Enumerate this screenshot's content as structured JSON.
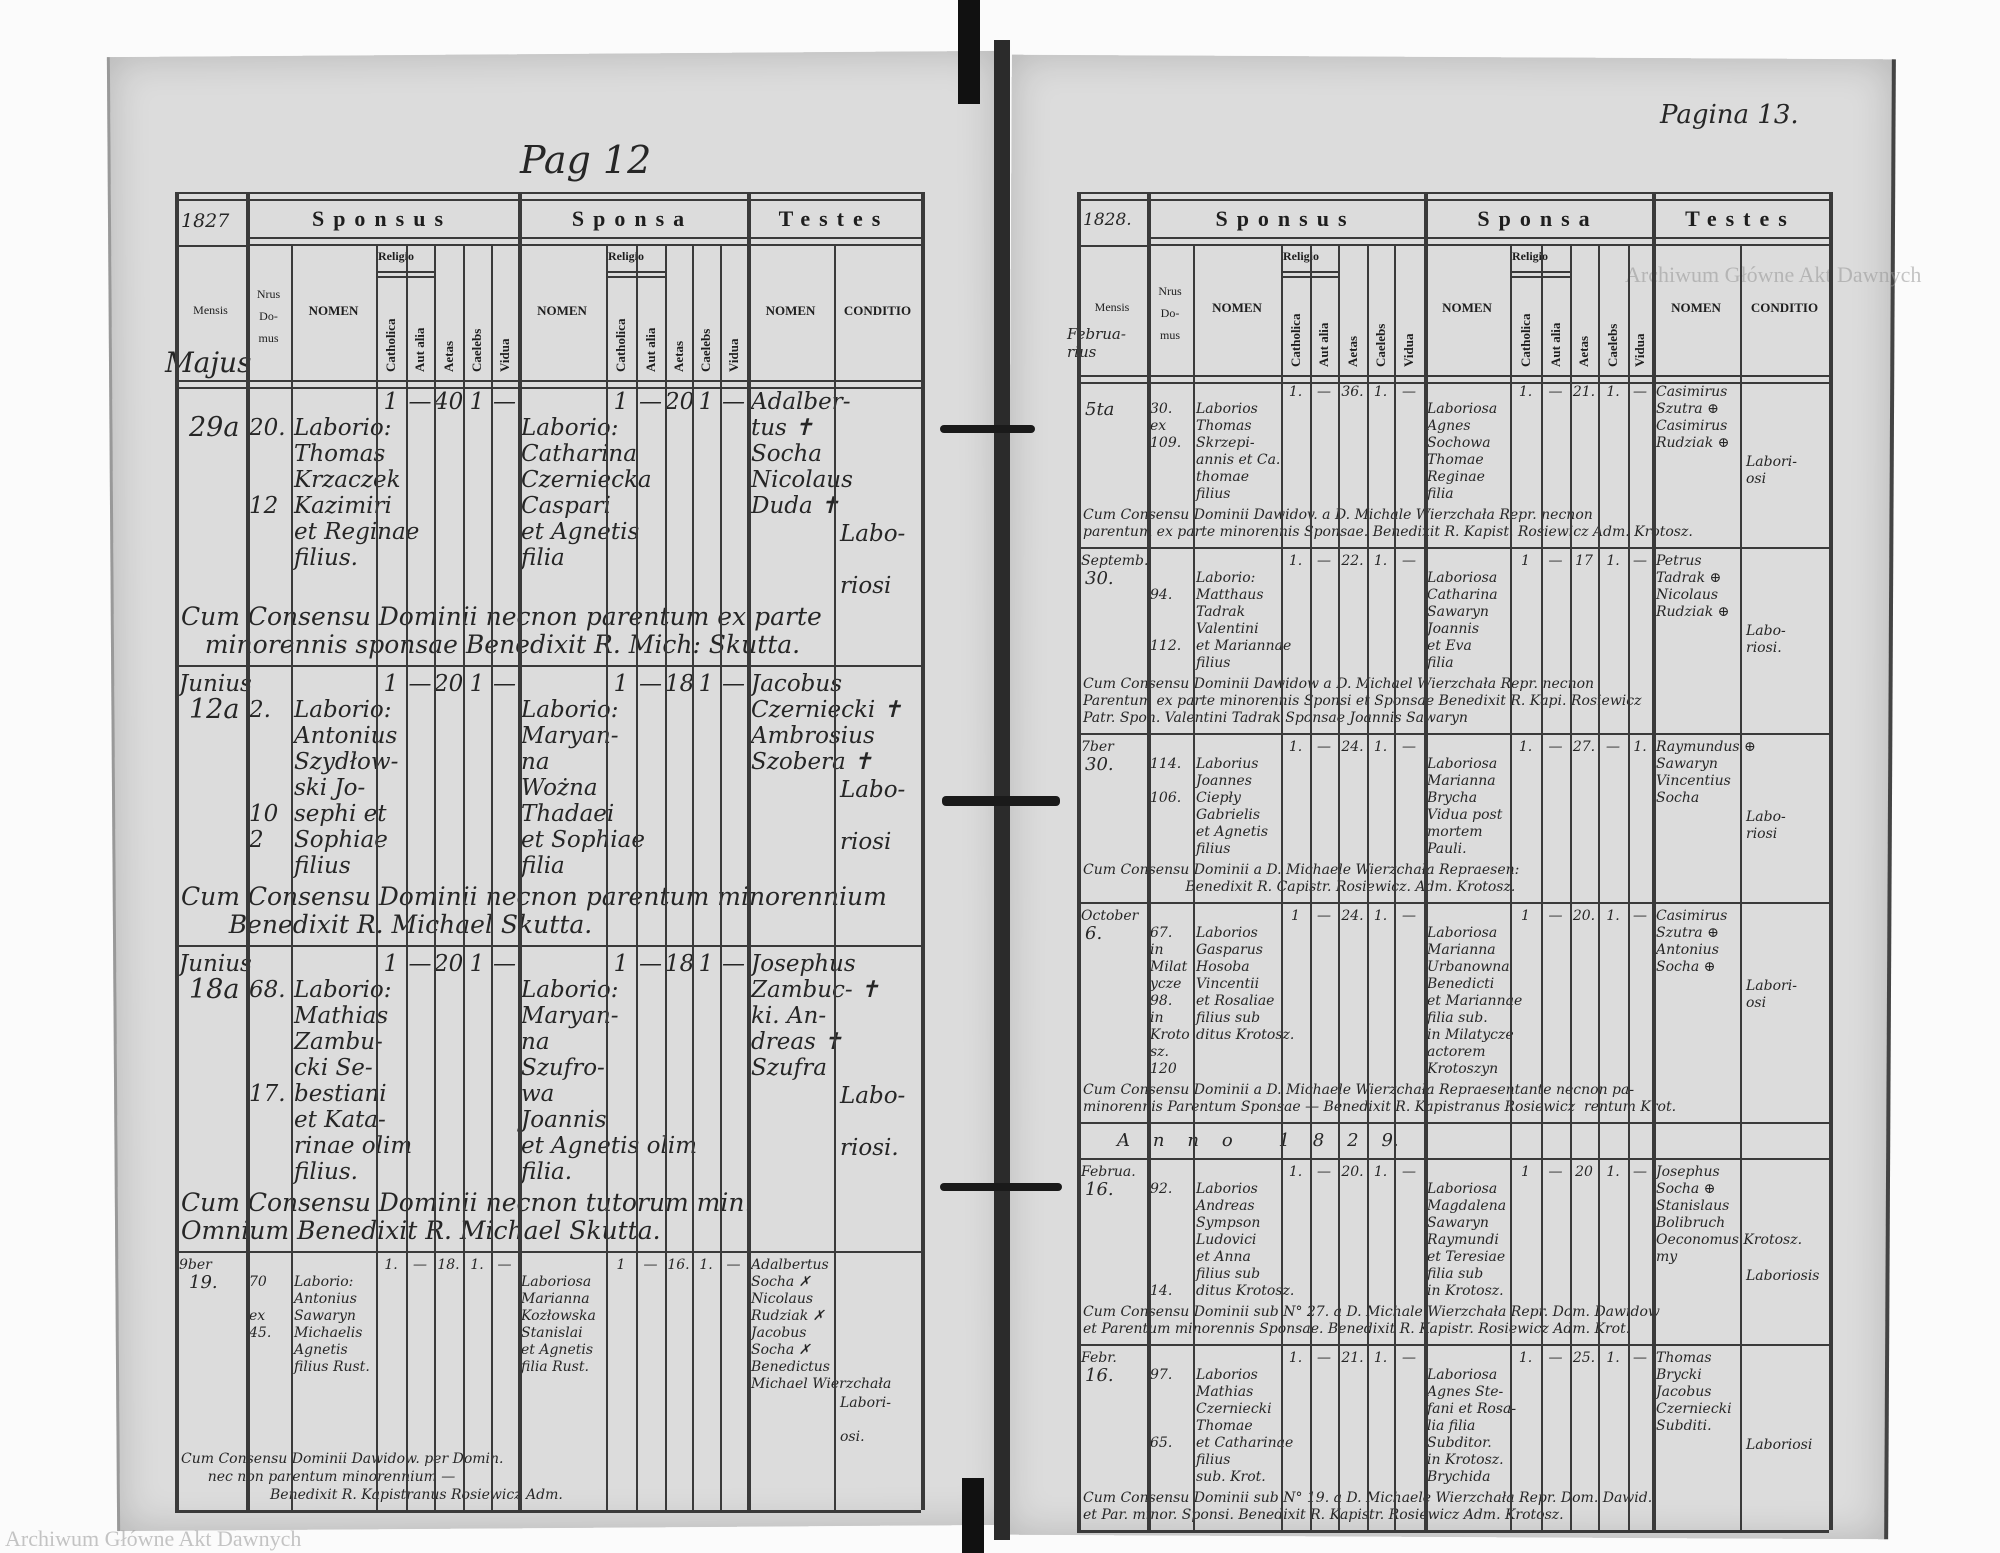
{
  "watermark": "Archiwum Główne Akt Dawnych",
  "headers": {
    "sponsus": "Sponsus",
    "sponsa": "Sponsa",
    "testes": "Testes",
    "mensis": "Mensis",
    "nrus_domus": "Nrus\nDo-\nmus",
    "nomen": "NOMEN",
    "religio": "Religio",
    "catholica": "Catholica",
    "aut_alia": "Aut alia",
    "aetas": "Aetas",
    "caelebs": "Caelebs",
    "vidua": "Vidua",
    "conditio": "CONDITIO"
  },
  "left": {
    "page_number": "Pag 12",
    "year": "1827",
    "month_heading": "Majus",
    "entries": [
      {
        "mensis": "",
        "day": "29a",
        "house": "20.\n\n\n12",
        "sponsus": {
          "nomen": "Laborio:\nThomas\nKrzaczek\nKazimiri\net Reginae\nfilius.",
          "catholica": "1",
          "aut_alia": "—",
          "aetas": "40",
          "caelebs": "1",
          "vidua": "—"
        },
        "sponsa": {
          "nomen": "Laborio:\nCatharina\nCzerniecka\nCaspari\net Agnetis\nfilia",
          "catholica": "1",
          "aut_alia": "—",
          "aetas": "20",
          "caelebs": "1",
          "vidua": "—"
        },
        "testes": "Adalber-\ntus ✝\nSocha\nNicolaus\nDuda ✝",
        "conditio": "Labo-\n\nriosi",
        "remark": "Cum Consensu Dominii necnon parentum ex parte\n   minorennis sponsae Benedixit R. Mich: Skutta."
      },
      {
        "mensis": "Junius",
        "day": "12a",
        "house": "2.\n\n\n\n102",
        "sponsus": {
          "nomen": "Laborio:\nAntonius\nSzydłow-\nski Jo-\nsephi et\nSophiae\nfilius",
          "catholica": "1",
          "aut_alia": "—",
          "aetas": "20",
          "caelebs": "1",
          "vidua": "—"
        },
        "sponsa": {
          "nomen": "Laborio:\nMaryan-\nna\nWożna\nThadaei\net Sophiae\nfilia",
          "catholica": "1",
          "aut_alia": "—",
          "aetas": "18",
          "caelebs": "1",
          "vidua": "—"
        },
        "testes": "Jacobus\nCzerniecki ✝\nAmbrosius\nSzobera ✝",
        "conditio": "Labo-\n\nriosi",
        "remark": "Cum Consensu Dominii necnon parentum minorennium\n      Benedixit R. Michael Skutta."
      },
      {
        "mensis": "Junius",
        "day": "18a",
        "house": "68.\n\n\n\n17.",
        "sponsus": {
          "nomen": "Laborio:\nMathias\nZambu-\ncki Se-\nbestiani\net Kata-\nrinae olim\nfilius.",
          "catholica": "1",
          "aut_alia": "—",
          "aetas": "20",
          "caelebs": "1",
          "vidua": "—"
        },
        "sponsa": {
          "nomen": "Laborio:\nMaryan-\nna\nSzufro-\nwa\nJoannis\net Agnetis olim\nfilia.",
          "catholica": "1",
          "aut_alia": "—",
          "aetas": "18",
          "caelebs": "1",
          "vidua": "—"
        },
        "testes": "Josephus\nZambuc- ✝\nki. An-\ndreas ✝\nSzufra",
        "conditio": "Labo-\n\nriosi.",
        "remark": "Cum Consensu Dominii necnon tutorum min.\nOmnium Benedixit R. Michael Skutta."
      },
      {
        "mensis": "9ber",
        "day": "19.",
        "house": "70\n\nex\n45.",
        "sponsus": {
          "nomen": "Laborio:\nAntonius\nSawaryn\nMichaelis\nAgnetis\nfilius Rust.",
          "catholica": "1.",
          "aut_alia": "—",
          "aetas": "18.",
          "caelebs": "1.",
          "vidua": "—"
        },
        "sponsa": {
          "nomen": "Laboriosa\nMarianna\nKozłowska\nStanislai\net Agnetis\nfilia Rust.",
          "catholica": "1",
          "aut_alia": "—",
          "aetas": "16.",
          "caelebs": "1.",
          "vidua": "—"
        },
        "testes": "Adalbertus\nSocha ✗\nNicolaus\nRudziak ✗\nJacobus\nSocha ✗\nBenedictus\nMichael Wierzchała",
        "conditio": "Labori-\n\nosi.",
        "remark": "Cum Consensu Dominii Dawidow. per Domin.\n      nec non parentum minorennium —\n                    Benedixit R. Kapistranus Rosiewicz Adm."
      }
    ]
  },
  "right": {
    "page_number": "Pagina 13.",
    "year": "1828.",
    "month_heading": "Februa-\nrius",
    "anno_row": "A    n    n    o        1    8    2    9.",
    "entries": [
      {
        "mensis": "",
        "day": "5ta",
        "house": "30.\nex\n109.",
        "sponsus": {
          "nomen": "Laborios\nThomas\nSkrzepi-\nannis et Ca.\nthomae\nfilius",
          "catholica": "1.",
          "aut_alia": "—",
          "aetas": "36.",
          "caelebs": "1.",
          "vidua": "—"
        },
        "sponsa": {
          "nomen": "Laboriosa\nAgnes\nSochowa\nThomae\nReginae\nfilia",
          "catholica": "1.",
          "aut_alia": "—",
          "aetas": "21.",
          "caelebs": "1.",
          "vidua": "—"
        },
        "testes": "Casimirus\nSzutra ⊕\nCasimirus\nRudziak ⊕",
        "conditio": "Labori-\nosi",
        "remark": "Cum Consensu Dominii Dawidov. a D. Michale Wierzchała Repr. necnon\nparentum ex parte minorennis Sponsae. Benedixit R. Kapist. Rosiewicz Adm. Krotosz."
      },
      {
        "mensis": "Septemb.",
        "day": "30.",
        "house": "\n94.\n\n\n112.",
        "sponsus": {
          "nomen": "Laborio:\nMatthaus\nTadrak\nValentini\net Mariannae\nfilius",
          "catholica": "1.",
          "aut_alia": "—",
          "aetas": "22.",
          "caelebs": "1.",
          "vidua": "—"
        },
        "sponsa": {
          "nomen": "Laboriosa\nCatharina\nSawaryn\nJoannis\net Eva\nfilia",
          "catholica": "1",
          "aut_alia": "—",
          "aetas": "17",
          "caelebs": "1.",
          "vidua": "—"
        },
        "testes": "Petrus\nTadrak ⊕\nNicolaus\nRudziak ⊕",
        "conditio": "Labo-\nriosi.",
        "remark": "Cum Consensu Dominii Dawidow a D. Michael Wierzchała Repr. necnon\nParentum ex parte minorennis Sponsi et Sponsae Benedixit R. Kapi. Rosiewicz\nPatr. Spon. Valentini Tadrak Sponsae Joannis Sawaryn"
      },
      {
        "mensis": "7ber",
        "day": "30.",
        "house": "114.\n\n106.",
        "sponsus": {
          "nomen": "Laborius\nJoannes\nCiepły\nGabrielis\net Agnetis\nfilius",
          "catholica": "1.",
          "aut_alia": "—",
          "aetas": "24.",
          "caelebs": "1.",
          "vidua": "—"
        },
        "sponsa": {
          "nomen": "Laboriosa\nMarianna\nBrycha\nVidua post\nmortem\nPauli.",
          "catholica": "1.",
          "aut_alia": "—",
          "aetas": "27.",
          "caelebs": "—",
          "vidua": "1."
        },
        "testes": "Raymundus ⊕\nSawaryn\nVincentius\nSocha",
        "conditio": "Labo-\nriosi",
        "remark": "Cum Consensu Dominii a D. Michaele Wierzchała Repraesen:\n                       Benedixit R. Capistr. Rosiewicz. Adm. Krotosz."
      },
      {
        "mensis": "October",
        "day": "6.",
        "house": "67.\nin\nMilatycze\n98.\nin Krotosz.\n120",
        "sponsus": {
          "nomen": "Laborios\nGasparus\nHosoba\nVincentii\net Rosaliae\nfilius sub\nditus Krotosz.",
          "catholica": "1",
          "aut_alia": "—",
          "aetas": "24.",
          "caelebs": "1.",
          "vidua": "—"
        },
        "sponsa": {
          "nomen": "Laboriosa\nMarianna\nUrbanowna\nBenedicti\net Mariannae\nfilia sub.\nin Milatycze\nactorem\nKrotoszyn",
          "catholica": "1",
          "aut_alia": "—",
          "aetas": "20.",
          "caelebs": "1.",
          "vidua": "—"
        },
        "testes": "Casimirus\nSzutra ⊕\nAntonius\nSocha ⊕",
        "conditio": "Labori-\nosi",
        "remark": "Cum Consensu Dominii a D. Michaele Wierzchała Repraesentante necnon pa-\nminorennis Parentum Sponsae — Benedixit R. Kapistranus Rosiewicz  rentum Krot."
      },
      {
        "mensis": "Februa.",
        "day": "16.",
        "house": "92.\n\n\n\n\n\n14.",
        "sponsus": {
          "nomen": "Laborios\nAndreas\nSympson\nLudovici\net Anna\nfilius sub\nditus Krotosz.",
          "catholica": "1.",
          "aut_alia": "—",
          "aetas": "20.",
          "caelebs": "1.",
          "vidua": "—"
        },
        "sponsa": {
          "nomen": "Laboriosa\nMagdalena\nSawaryn\nRaymundi\net Teresiae\nfilia sub\nin Krotosz.",
          "catholica": "1",
          "aut_alia": "—",
          "aetas": "20",
          "caelebs": "1.",
          "vidua": "—"
        },
        "testes": "Josephus\nSocha ⊕\nStanislaus\nBolibruch\nOeconomus Krotosz.\nmy",
        "conditio": "Laboriosis",
        "remark": "Cum Consensu Dominii sub N° 27. a D. Michale Wierzchała Repr. Dom. Dawidow\net Parentum minorennis Sponsae. Benedixit R. Kapistr. Rosiewicz Adm. Krot."
      },
      {
        "mensis": "Febr.",
        "day": "16.",
        "house": "97.\n\n\n\n65.",
        "sponsus": {
          "nomen": "Laborios\nMathias\nCzerniecki\nThomae\net Catharinae\nfilius\nsub. Krot.",
          "catholica": "1.",
          "aut_alia": "—",
          "aetas": "21.",
          "caelebs": "1.",
          "vidua": "—"
        },
        "sponsa": {
          "nomen": "Laboriosa\nAgnes Ste-\nfani et Rosa-\nlia filia\nSubditor.\nin Krotosz.\nBrychida",
          "catholica": "1.",
          "aut_alia": "—",
          "aetas": "25.",
          "caelebs": "1.",
          "vidua": "—"
        },
        "testes": "Thomas\nBrycki\nJacobus\nCzerniecki\nSubditi.",
        "conditio": "Laboriosi",
        "remark": "Cum Consensu Dominii sub N° 19. a D. Michaele Wierzchała Repr. Dom. Dawid.\net Par. minor. Sponsi. Benedixit R. Kapistr. Rosiewicz Adm. Krotosz."
      }
    ]
  }
}
